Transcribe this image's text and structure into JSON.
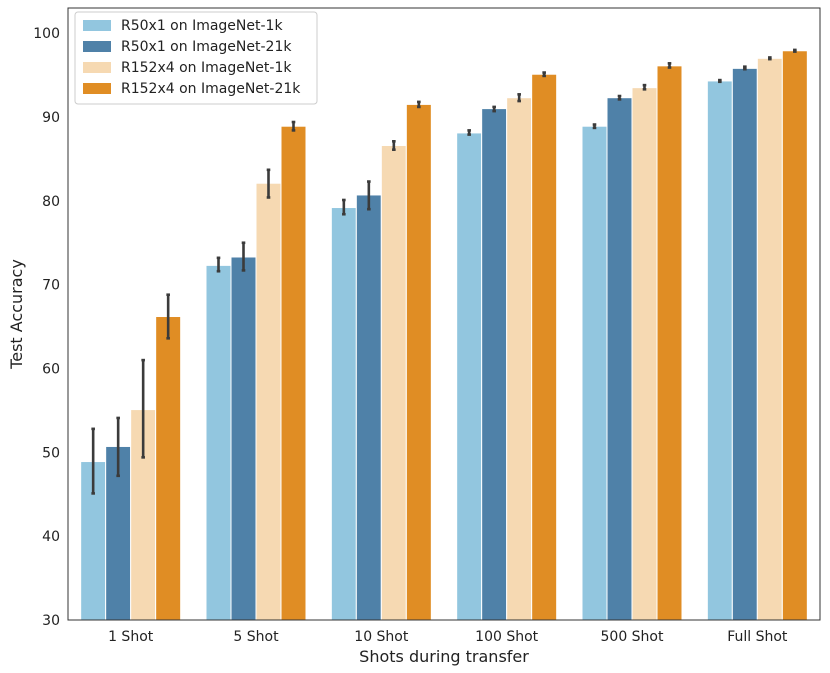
{
  "chart_data": {
    "type": "bar",
    "xlabel": "Shots during transfer",
    "ylabel": "Test Accuracy",
    "ylim": [
      30,
      103
    ],
    "yticks": [
      30,
      40,
      50,
      60,
      70,
      80,
      90,
      100
    ],
    "grid": false,
    "legend_position": "top-left",
    "categories": [
      "1 Shot",
      "5 Shot",
      "10 Shot",
      "100 Shot",
      "500 Shot",
      "Full Shot"
    ],
    "series": [
      {
        "name": "R50x1 on ImageNet-1k",
        "color": "#92c6df",
        "values": [
          48.9,
          72.3,
          79.2,
          88.1,
          88.9,
          94.3
        ],
        "err_low": [
          45.1,
          71.6,
          78.4,
          87.9,
          88.7,
          94.2
        ],
        "err_high": [
          52.8,
          73.2,
          80.1,
          88.4,
          89.1,
          94.4
        ]
      },
      {
        "name": "R50x1 on ImageNet-21k",
        "color": "#4f81a8",
        "values": [
          50.7,
          73.3,
          80.7,
          91.0,
          92.3,
          95.8
        ],
        "err_low": [
          47.2,
          71.7,
          79.0,
          90.7,
          92.1,
          95.7
        ],
        "err_high": [
          54.1,
          75.0,
          82.3,
          91.2,
          92.5,
          96.0
        ]
      },
      {
        "name": "R152x4 on ImageNet-1k",
        "color": "#f6d9b2",
        "values": [
          55.1,
          82.1,
          86.6,
          92.3,
          93.5,
          97.0
        ],
        "err_low": [
          49.4,
          80.4,
          86.1,
          91.9,
          93.3,
          96.9
        ],
        "err_high": [
          61.0,
          83.7,
          87.1,
          92.7,
          93.8,
          97.1
        ]
      },
      {
        "name": "R152x4 on ImageNet-21k",
        "color": "#e08d24",
        "values": [
          66.2,
          88.9,
          91.5,
          95.1,
          96.1,
          97.9
        ],
        "err_low": [
          63.6,
          88.4,
          91.2,
          94.9,
          95.9,
          97.8
        ],
        "err_high": [
          68.8,
          89.4,
          91.8,
          95.3,
          96.4,
          98.0
        ]
      }
    ]
  }
}
